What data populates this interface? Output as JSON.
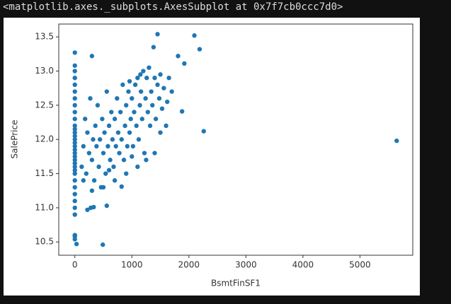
{
  "output": "<matplotlib.axes._subplots.AxesSubplot at 0x7f7cb0ccc7d0>",
  "chart_data": {
    "type": "scatter",
    "xlabel": "BsmtFinSF1",
    "ylabel": "SalePrice",
    "color": "#1f77b4",
    "xlim": [
      -282,
      5926
    ],
    "ylim": [
      10.306,
      13.688
    ],
    "xticks": [
      0,
      1000,
      2000,
      3000,
      4000,
      5000
    ],
    "yticks": [
      10.5,
      {
        "value": 11,
        "label": "11.0"
      },
      11.5,
      {
        "value": 12,
        "label": "12.0"
      },
      12.5,
      {
        "value": 13,
        "label": "13.0"
      },
      13.5
    ],
    "x": [
      0,
      0,
      0,
      0,
      0,
      0,
      0,
      0,
      0,
      0,
      0,
      0,
      0,
      0,
      0,
      0,
      0,
      0,
      0,
      0,
      0,
      0,
      0,
      0,
      0,
      0,
      0,
      0,
      0,
      0,
      0,
      120,
      150,
      180,
      200,
      220,
      250,
      270,
      300,
      320,
      340,
      360,
      380,
      400,
      420,
      440,
      460,
      480,
      500,
      520,
      540,
      560,
      580,
      600,
      620,
      640,
      660,
      680,
      700,
      720,
      740,
      760,
      780,
      800,
      820,
      840,
      860,
      880,
      900,
      920,
      940,
      960,
      980,
      1000,
      1020,
      1040,
      1060,
      1080,
      1100,
      1120,
      1140,
      1160,
      1180,
      1200,
      1220,
      1240,
      1260,
      1280,
      1300,
      1320,
      1340,
      1360,
      1380,
      1400,
      1420,
      1450,
      1480,
      1500,
      1530,
      1560,
      1600,
      1620,
      1650,
      1700,
      1400,
      1250,
      1100,
      900,
      700,
      500,
      300,
      150,
      600,
      1000,
      1500,
      1150,
      960,
      5644,
      2260,
      2096,
      2188,
      1450,
      1880,
      1810,
      1920,
      490,
      0,
      0,
      30,
      0,
      300,
      220,
      280,
      330,
      560,
      820
    ],
    "values": [
      10.6,
      10.9,
      11.0,
      11.1,
      11.2,
      11.3,
      11.4,
      11.5,
      11.55,
      11.6,
      11.65,
      11.7,
      11.75,
      11.8,
      11.85,
      11.9,
      11.95,
      12.0,
      12.05,
      12.1,
      12.15,
      12.2,
      12.3,
      12.4,
      12.5,
      12.6,
      12.7,
      12.8,
      12.9,
      13.0,
      13.08,
      11.6,
      11.9,
      12.3,
      11.5,
      12.1,
      11.8,
      12.6,
      11.7,
      12.0,
      11.4,
      12.2,
      11.9,
      12.5,
      11.6,
      12.0,
      11.3,
      12.3,
      11.8,
      12.1,
      11.5,
      12.7,
      11.9,
      12.2,
      11.7,
      12.4,
      12.0,
      11.6,
      12.3,
      11.9,
      12.6,
      12.1,
      11.8,
      12.4,
      12.0,
      12.8,
      11.7,
      12.2,
      12.5,
      11.9,
      12.7,
      12.1,
      12.3,
      12.6,
      11.9,
      12.4,
      12.8,
      12.2,
      12.9,
      12.0,
      12.5,
      12.7,
      12.3,
      13.0,
      11.8,
      12.6,
      12.9,
      12.4,
      13.05,
      12.2,
      12.7,
      12.5,
      13.35,
      12.9,
      12.3,
      12.8,
      12.6,
      12.95,
      12.45,
      12.75,
      12.2,
      12.55,
      12.9,
      12.7,
      11.8,
      11.7,
      11.6,
      11.5,
      11.4,
      11.3,
      11.25,
      11.4,
      11.55,
      11.75,
      12.1,
      12.95,
      12.85,
      11.98,
      12.12,
      13.52,
      13.32,
      13.54,
      12.41,
      13.22,
      13.11,
      10.46,
      10.58,
      10.54,
      10.47,
      13.27,
      13.22,
      10.97,
      11.0,
      11.01,
      11.03,
      11.31
    ]
  }
}
